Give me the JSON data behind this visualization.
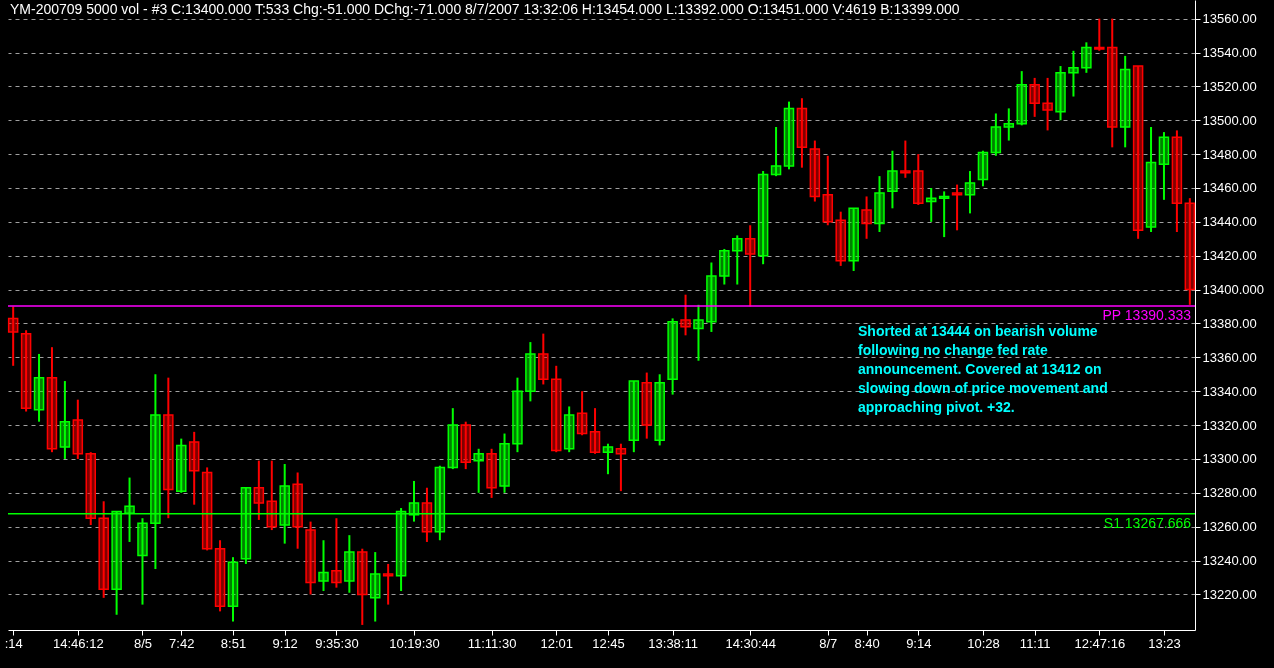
{
  "chart_data": {
    "type": "candlestick",
    "title": "YM-200709  5000 vol - #3   C:13400.000   T:533   Chg:-51.000   DChg:-71.000   8/7/2007   13:32:06   H:13454.000   L:13392.000   O:13451.000   V:4619   B:13399.000",
    "categories": [
      ":14",
      null,
      null,
      null,
      null,
      "14:46:12",
      null,
      null,
      null,
      null,
      "8/5",
      null,
      null,
      "7:42",
      null,
      null,
      null,
      "8:51",
      null,
      null,
      null,
      "9:12",
      null,
      null,
      null,
      "9:35:30",
      null,
      null,
      null,
      null,
      null,
      "10:19:30",
      null,
      null,
      null,
      null,
      null,
      "11:11:30",
      null,
      null,
      null,
      null,
      "12:01",
      null,
      null,
      null,
      "12:45",
      null,
      null,
      null,
      null,
      "13:38:11",
      null,
      null,
      null,
      null,
      null,
      "14:30:44",
      null,
      null,
      null,
      null,
      null,
      "8/7",
      null,
      null,
      "8:40",
      null,
      null,
      null,
      "9:14",
      null,
      null,
      null,
      null,
      "10:28",
      null,
      null,
      null,
      "11:11",
      null,
      null,
      null,
      null,
      "12:47:16",
      null,
      null,
      null,
      null,
      "13:23",
      null,
      null
    ],
    "ohlc": [
      [
        13383,
        13390,
        13355,
        13375
      ],
      [
        13374,
        13376,
        13328,
        13330
      ],
      [
        13329,
        13362,
        13322,
        13348
      ],
      [
        13348,
        13366,
        13304,
        13306
      ],
      [
        13307,
        13346,
        13300,
        13322
      ],
      [
        13323,
        13335,
        13300,
        13303
      ],
      [
        13303,
        13304,
        13261,
        13265
      ],
      [
        13265,
        13275,
        13218,
        13223
      ],
      [
        13223,
        13269,
        13208,
        13269
      ],
      [
        13268,
        13289,
        13251,
        13272
      ],
      [
        13243,
        13265,
        13214,
        13262
      ],
      [
        13262,
        13350,
        13235,
        13326
      ],
      [
        13326,
        13348,
        13265,
        13282
      ],
      [
        13281,
        13312,
        13280,
        13308
      ],
      [
        13310,
        13316,
        13273,
        13293
      ],
      [
        13292,
        13295,
        13246,
        13247
      ],
      [
        13247,
        13252,
        13210,
        13213
      ],
      [
        13213,
        13242,
        13204,
        13239
      ],
      [
        13241,
        13283,
        13238,
        13283
      ],
      [
        13283,
        13299,
        13264,
        13274
      ],
      [
        13275,
        13299,
        13258,
        13260
      ],
      [
        13261,
        13297,
        13250,
        13284
      ],
      [
        13285,
        13292,
        13247,
        13260
      ],
      [
        13258,
        13263,
        13220,
        13227
      ],
      [
        13228,
        13252,
        13222,
        13233
      ],
      [
        13234,
        13265,
        13224,
        13227
      ],
      [
        13228,
        13255,
        13221,
        13245
      ],
      [
        13245,
        13247,
        13202,
        13220
      ],
      [
        13218,
        13245,
        13204,
        13232
      ],
      [
        13232,
        13238,
        13214,
        13231
      ],
      [
        13231,
        13271,
        13222,
        13269
      ],
      [
        13267,
        13287,
        13263,
        13274
      ],
      [
        13274,
        13283,
        13251,
        13257
      ],
      [
        13257,
        13296,
        13252,
        13295
      ],
      [
        13295,
        13330,
        13294,
        13320
      ],
      [
        13320,
        13322,
        13294,
        13298
      ],
      [
        13299,
        13306,
        13280,
        13303
      ],
      [
        13303,
        13306,
        13277,
        13283
      ],
      [
        13284,
        13315,
        13280,
        13309
      ],
      [
        13309,
        13348,
        13304,
        13340
      ],
      [
        13340,
        13369,
        13334,
        13362
      ],
      [
        13362,
        13374,
        13344,
        13347
      ],
      [
        13347,
        13355,
        13304,
        13305
      ],
      [
        13306,
        13331,
        13304,
        13326
      ],
      [
        13327,
        13340,
        13314,
        13315
      ],
      [
        13316,
        13330,
        13303,
        13304
      ],
      [
        13304,
        13309,
        13291,
        13307
      ],
      [
        13306,
        13309,
        13281,
        13303
      ],
      [
        13311,
        13346,
        13304,
        13346
      ],
      [
        13345,
        13351,
        13312,
        13320
      ],
      [
        13311,
        13350,
        13308,
        13345
      ],
      [
        13347,
        13383,
        13338,
        13381
      ],
      [
        13382,
        13397,
        13373,
        13378
      ],
      [
        13377,
        13391,
        13358,
        13382
      ],
      [
        13381,
        13416,
        13375,
        13408
      ],
      [
        13408,
        13424,
        13403,
        13423
      ],
      [
        13423,
        13432,
        13403,
        13430
      ],
      [
        13430,
        13438,
        13390,
        13421
      ],
      [
        13420,
        13470,
        13415,
        13468
      ],
      [
        13468,
        13496,
        13467,
        13473
      ],
      [
        13473,
        13511,
        13471,
        13507
      ],
      [
        13507,
        13513,
        13472,
        13484
      ],
      [
        13483,
        13488,
        13452,
        13455
      ],
      [
        13456,
        13479,
        13438,
        13440
      ],
      [
        13441,
        13446,
        13414,
        13417
      ],
      [
        13417,
        13448,
        13411,
        13448
      ],
      [
        13447,
        13455,
        13430,
        13439
      ],
      [
        13439,
        13467,
        13434,
        13457
      ],
      [
        13458,
        13482,
        13448,
        13470
      ],
      [
        13470,
        13488,
        13466,
        13469
      ],
      [
        13470,
        13480,
        13450,
        13451
      ],
      [
        13452,
        13460,
        13440,
        13454
      ],
      [
        13454,
        13458,
        13431,
        13455
      ],
      [
        13457,
        13462,
        13435,
        13456
      ],
      [
        13456,
        13470,
        13445,
        13463
      ],
      [
        13465,
        13482,
        13461,
        13481
      ],
      [
        13481,
        13504,
        13479,
        13496
      ],
      [
        13496,
        13507,
        13488,
        13498
      ],
      [
        13498,
        13529,
        13497,
        13521
      ],
      [
        13521,
        13525,
        13502,
        13510
      ],
      [
        13510,
        13525,
        13494,
        13506
      ],
      [
        13505,
        13532,
        13500,
        13528
      ],
      [
        13528,
        13541,
        13514,
        13531
      ],
      [
        13531,
        13546,
        13528,
        13543
      ],
      [
        13543,
        13560,
        13541,
        13542
      ],
      [
        13543,
        13560,
        13484,
        13496
      ],
      [
        13496,
        13538,
        13484,
        13530
      ],
      [
        13532,
        13532,
        13430,
        13435
      ],
      [
        13437,
        13496,
        13434,
        13475
      ],
      [
        13474,
        13493,
        13453,
        13490
      ],
      [
        13490,
        13494,
        13434,
        13451
      ],
      [
        13451,
        13454,
        13391,
        13400
      ]
    ],
    "colors": [
      "#ff0000",
      "#ff0000",
      "#00ff00",
      "#ff0000",
      "#00ff00",
      "#ff0000",
      "#ff0000",
      "#ff0000",
      "#00ff00",
      "#00ff00",
      "#00ff00",
      "#00ff00",
      "#ff0000",
      "#00ff00",
      "#ff0000",
      "#ff0000",
      "#ff0000",
      "#00ff00",
      "#00ff00",
      "#ff0000",
      "#ff0000",
      "#00ff00",
      "#ff0000",
      "#ff0000",
      "#00ff00",
      "#ff0000",
      "#00ff00",
      "#ff0000",
      "#00ff00",
      "#ff0000",
      "#00ff00",
      "#00ff00",
      "#ff0000",
      "#00ff00",
      "#00ff00",
      "#ff0000",
      "#00ff00",
      "#ff0000",
      "#00ff00",
      "#00ff00",
      "#00ff00",
      "#ff0000",
      "#ff0000",
      "#00ff00",
      "#ff0000",
      "#ff0000",
      "#00ff00",
      "#ff0000",
      "#00ff00",
      "#ff0000",
      "#00ff00",
      "#00ff00",
      "#ff0000",
      "#00ff00",
      "#00ff00",
      "#00ff00",
      "#00ff00",
      "#ff0000",
      "#00ff00",
      "#00ff00",
      "#00ff00",
      "#ff0000",
      "#ff0000",
      "#ff0000",
      "#ff0000",
      "#00ff00",
      "#ff0000",
      "#00ff00",
      "#00ff00",
      "#ff0000",
      "#ff0000",
      "#00ff00",
      "#00ff00",
      "#ff0000",
      "#00ff00",
      "#00ff00",
      "#00ff00",
      "#00ff00",
      "#00ff00",
      "#ff0000",
      "#ff0000",
      "#00ff00",
      "#00ff00",
      "#00ff00",
      "#ff0000",
      "#ff0000",
      "#00ff00",
      "#ff0000",
      "#00ff00",
      "#00ff00",
      "#ff0000",
      "#ff0000"
    ],
    "ylim": [
      13199,
      13571
    ],
    "yticks": [
      {
        "value": 13220,
        "label": "13220.00"
      },
      {
        "value": 13240,
        "label": "13240.00"
      },
      {
        "value": 13260,
        "label": "13260.00"
      },
      {
        "value": 13280,
        "label": "13280.00"
      },
      {
        "value": 13300,
        "label": "13300.00"
      },
      {
        "value": 13320,
        "label": "13320.00"
      },
      {
        "value": 13340,
        "label": "13340.00"
      },
      {
        "value": 13360,
        "label": "13360.00"
      },
      {
        "value": 13380,
        "label": "13380.00"
      },
      {
        "value": 13400,
        "label": "13400.000"
      },
      {
        "value": 13420,
        "label": "13420.00"
      },
      {
        "value": 13440,
        "label": "13440.00"
      },
      {
        "value": 13460,
        "label": "13460.00"
      },
      {
        "value": 13480,
        "label": "13480.00"
      },
      {
        "value": 13500,
        "label": "13500.00"
      },
      {
        "value": 13520,
        "label": "13520.00"
      },
      {
        "value": 13540,
        "label": "13540.00"
      },
      {
        "value": 13560,
        "label": "13560.00"
      }
    ],
    "grid": "y",
    "ref_lines": [
      {
        "axis": "y",
        "value": 13390.333,
        "label": "PP 13390.333",
        "color": "#ff00ff"
      },
      {
        "axis": "y",
        "value": 13267.666,
        "label": "S1 13267.666",
        "color": "#00ff00"
      }
    ],
    "annotations": [
      "Shorted at 13444 on bearish volume\nfollowing no change fed rate\nannouncement.  Covered at 13412 on\nslowing down of price movement and\napproaching pivot.  +32."
    ]
  }
}
